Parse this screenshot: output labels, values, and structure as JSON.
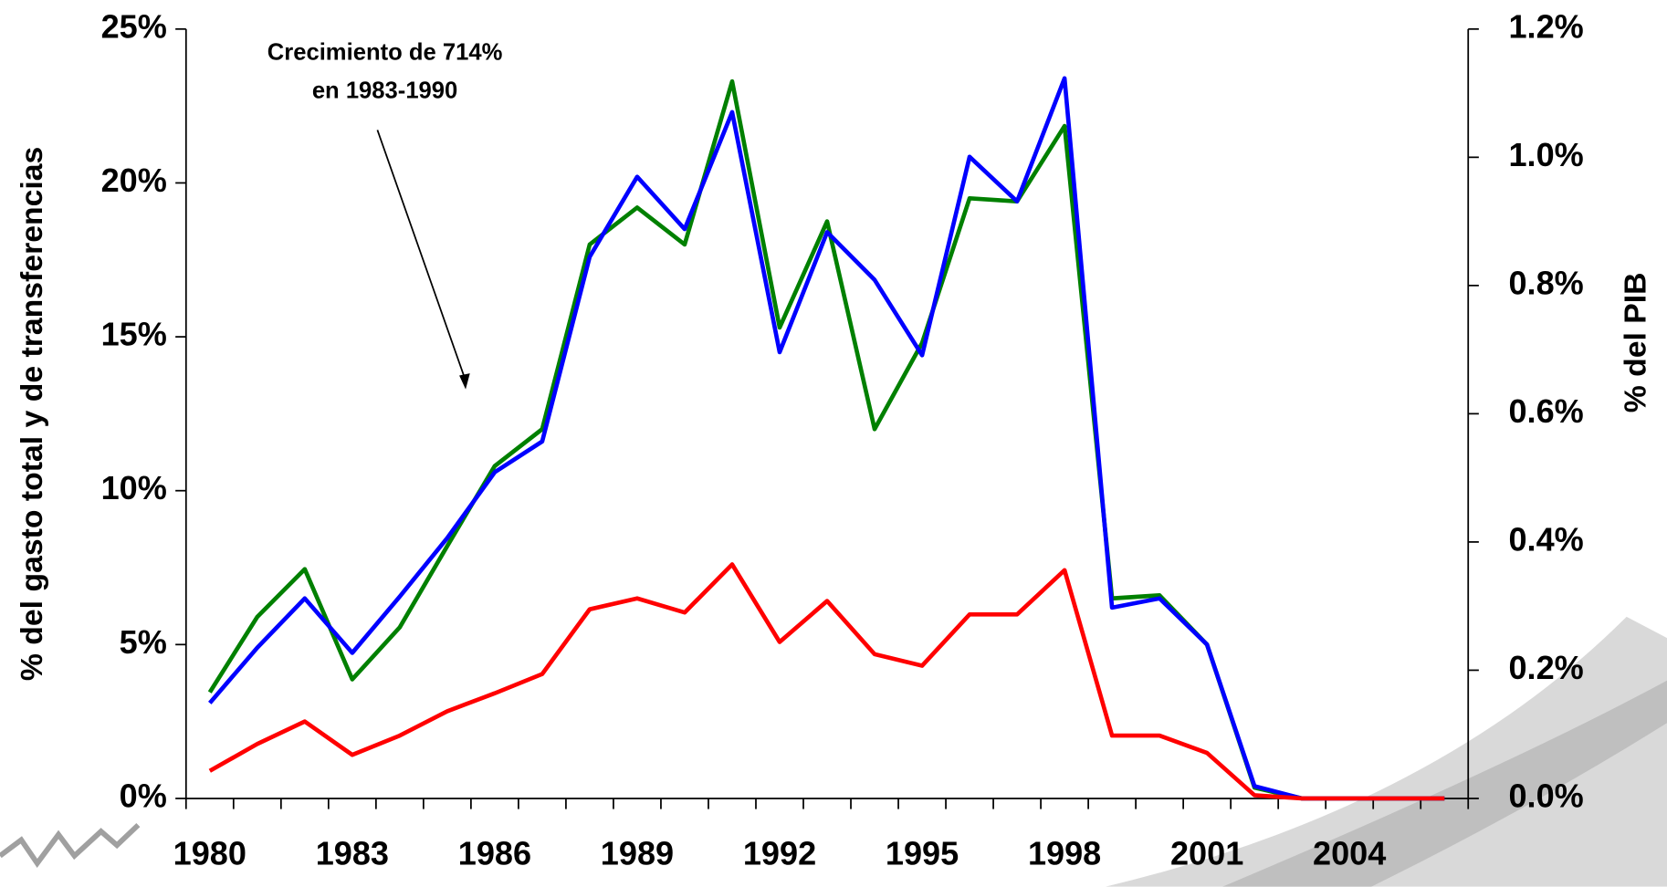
{
  "chart_data": {
    "type": "line",
    "annotation": [
      "Crecimiento de 714%",
      "en 1983-1990"
    ],
    "y_label": "% del gasto total y de transferencias",
    "y2_label": "% del PIB",
    "x": [
      1980,
      1981,
      1982,
      1983,
      1984,
      1985,
      1986,
      1987,
      1988,
      1989,
      1990,
      1991,
      1992,
      1993,
      1994,
      1995,
      1996,
      1997,
      1998,
      1999,
      2000,
      2001,
      2002,
      2003,
      2004,
      2005,
      2006
    ],
    "xlim": [
      1979.5,
      2006.5
    ],
    "xticks": [
      1980,
      1983,
      1986,
      1989,
      1992,
      1995,
      1998,
      2001,
      2004
    ],
    "ylim": [
      0,
      25
    ],
    "yticks": [
      {
        "value": 0,
        "label": "0%"
      },
      {
        "value": 5,
        "label": "5%"
      },
      {
        "value": 10,
        "label": "10%"
      },
      {
        "value": 15,
        "label": "15%"
      },
      {
        "value": 20,
        "label": "20%"
      },
      {
        "value": 25,
        "label": "25%"
      }
    ],
    "y2lim": [
      0,
      1.2
    ],
    "y2ticks": [
      {
        "value": 0,
        "label": "0.0%"
      },
      {
        "value": 0.2,
        "label": "0.2%"
      },
      {
        "value": 0.4,
        "label": "0.4%"
      },
      {
        "value": 0.6,
        "label": "0.6%"
      },
      {
        "value": 0.8,
        "label": "0.8%"
      },
      {
        "value": 1.0,
        "label": "1.0%"
      },
      {
        "value": 1.2,
        "label": "1.2%"
      }
    ],
    "series": [
      {
        "color": "#008000",
        "values": [
          3.45,
          5.9,
          7.45,
          3.87,
          5.56,
          8.2,
          10.8,
          12.0,
          18.0,
          19.2,
          18.0,
          23.3,
          15.3,
          18.75,
          12.0,
          14.8,
          19.5,
          19.4,
          21.85,
          6.5,
          6.6,
          5.0,
          0.35,
          0,
          0,
          0,
          0
        ]
      },
      {
        "color": "#0000ff",
        "values": [
          3.1,
          4.9,
          6.5,
          4.73,
          6.56,
          8.46,
          10.6,
          11.6,
          17.6,
          20.2,
          18.5,
          22.3,
          14.5,
          18.4,
          16.85,
          14.4,
          20.85,
          19.4,
          23.4,
          6.2,
          6.5,
          5.0,
          0.4,
          0,
          0,
          0,
          0
        ]
      },
      {
        "color": "#ff0000",
        "axis": "y2",
        "values": [
          0.043,
          0.085,
          0.12,
          0.068,
          0.098,
          0.136,
          0.164,
          0.194,
          0.295,
          0.312,
          0.29,
          0.365,
          0.244,
          0.308,
          0.225,
          0.207,
          0.287,
          0.287,
          0.356,
          0.098,
          0.098,
          0.071,
          0.005,
          0,
          0,
          0,
          0
        ]
      }
    ]
  }
}
